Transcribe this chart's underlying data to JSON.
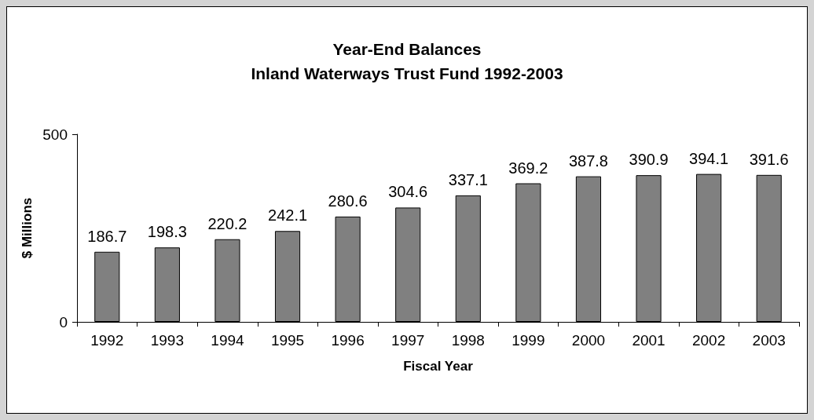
{
  "chart_data": {
    "type": "bar",
    "title": "Year-End Balances",
    "subtitle": "Inland Waterways Trust Fund 1992-2003",
    "xlabel": "Fiscal Year",
    "ylabel": "$ Millions",
    "categories": [
      "1992",
      "1993",
      "1994",
      "1995",
      "1996",
      "1997",
      "1998",
      "1999",
      "2000",
      "2001",
      "2002",
      "2003"
    ],
    "values": [
      186.7,
      198.3,
      220.2,
      242.1,
      280.6,
      304.6,
      337.1,
      369.2,
      387.8,
      390.9,
      394.1,
      391.6
    ],
    "color": "#808080",
    "ylim": [
      0,
      500
    ],
    "yticks": [
      0,
      500
    ],
    "grid": false,
    "data_labels": true
  }
}
